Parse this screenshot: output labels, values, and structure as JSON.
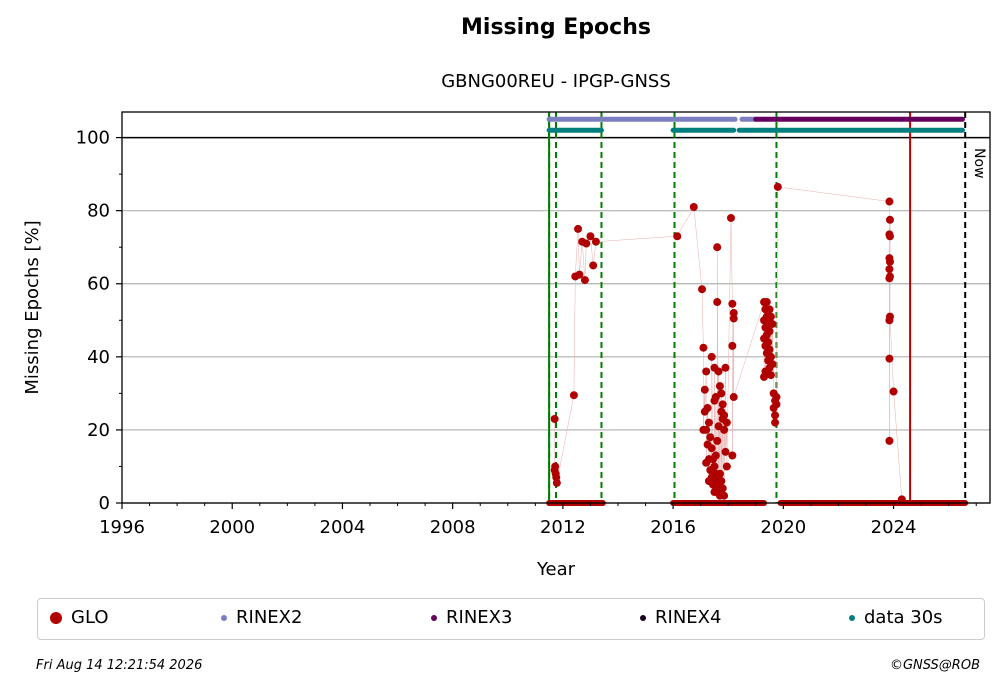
{
  "title": "Missing Epochs",
  "subtitle": "GBNG00REU - IPGP-GNSS",
  "footer": {
    "timestamp": "Fri Aug 14 12:21:54 2026",
    "copyright": "©GNSS@ROB"
  },
  "colors": {
    "glo": "#b00000",
    "rinex2": "#7b7fc0",
    "rinex3": "#66005e",
    "rinex4": "#1a0020",
    "data30s": "#007f7f",
    "green_lines": "#007f00",
    "red_line": "#c00000"
  },
  "legend": [
    {
      "label": "GLO",
      "color_key": "glo",
      "size": 12
    },
    {
      "label": "RINEX2",
      "color_key": "rinex2",
      "size": 6
    },
    {
      "label": "RINEX3",
      "color_key": "rinex3",
      "size": 6
    },
    {
      "label": "RINEX4",
      "color_key": "rinex4",
      "size": 6
    },
    {
      "label": "data 30s",
      "color_key": "data30s",
      "size": 6
    }
  ],
  "chart_data": {
    "type": "scatter",
    "title": "Missing Epochs",
    "subtitle": "GBNG00REU - IPGP-GNSS",
    "xlabel": "Year",
    "ylabel": "Missing Epochs [%]",
    "xlim": [
      1996,
      2027.5
    ],
    "ylim": [
      0,
      107
    ],
    "xticks": [
      1996,
      2000,
      2004,
      2008,
      2012,
      2016,
      2020,
      2024
    ],
    "yticks": [
      0,
      20,
      40,
      60,
      80,
      100
    ],
    "grid": true,
    "now_label": "Now",
    "now_x": 2026.6,
    "vertical_lines_green": [
      2011.5,
      2011.75,
      2013.4,
      2016.05,
      2019.75
    ],
    "vertical_line_red": 2024.6,
    "availability_bars": [
      {
        "name": "RINEX2",
        "y": 105,
        "ranges": [
          [
            2011.5,
            2018.25
          ],
          [
            2018.5,
            2019.0
          ]
        ]
      },
      {
        "name": "RINEX3",
        "y": 105,
        "ranges": [
          [
            2019.0,
            2026.5
          ]
        ]
      },
      {
        "name": "data 30s",
        "y": 102,
        "ranges": [
          [
            2011.5,
            2013.4
          ],
          [
            2016.0,
            2018.2
          ],
          [
            2018.4,
            2026.5
          ]
        ]
      }
    ],
    "zero_ranges": [
      [
        2011.5,
        2013.45
      ],
      [
        2016.0,
        2019.3
      ],
      [
        2019.9,
        2026.6
      ]
    ],
    "series": [
      {
        "name": "GLO",
        "points": [
          [
            2011.7,
            23
          ],
          [
            2011.72,
            10
          ],
          [
            2011.74,
            8
          ],
          [
            2011.76,
            7
          ],
          [
            2011.78,
            5.5
          ],
          [
            2011.7,
            9
          ],
          [
            2012.4,
            29.5
          ],
          [
            2012.45,
            62
          ],
          [
            2012.55,
            75
          ],
          [
            2012.6,
            62.5
          ],
          [
            2012.7,
            71.5
          ],
          [
            2012.8,
            61
          ],
          [
            2012.85,
            71
          ],
          [
            2013.0,
            73
          ],
          [
            2013.1,
            65
          ],
          [
            2013.2,
            71.5
          ],
          [
            2016.15,
            73
          ],
          [
            2016.75,
            81
          ],
          [
            2017.05,
            58.5
          ],
          [
            2017.1,
            42.5
          ],
          [
            2017.15,
            31
          ],
          [
            2017.2,
            36
          ],
          [
            2017.25,
            26
          ],
          [
            2017.3,
            22
          ],
          [
            2017.35,
            18
          ],
          [
            2017.4,
            15
          ],
          [
            2017.45,
            12
          ],
          [
            2017.5,
            10
          ],
          [
            2017.55,
            8
          ],
          [
            2017.6,
            6
          ],
          [
            2017.65,
            4
          ],
          [
            2017.7,
            2
          ],
          [
            2017.15,
            25
          ],
          [
            2017.2,
            20
          ],
          [
            2017.25,
            16
          ],
          [
            2017.3,
            12
          ],
          [
            2017.35,
            9
          ],
          [
            2017.4,
            7
          ],
          [
            2017.45,
            5
          ],
          [
            2017.5,
            3
          ],
          [
            2017.55,
            13
          ],
          [
            2017.6,
            17
          ],
          [
            2017.65,
            21
          ],
          [
            2017.5,
            37
          ],
          [
            2017.55,
            29
          ],
          [
            2017.6,
            55
          ],
          [
            2017.6,
            70
          ],
          [
            2017.7,
            32
          ],
          [
            2017.75,
            30
          ],
          [
            2017.8,
            27
          ],
          [
            2017.85,
            24
          ],
          [
            2017.75,
            25
          ],
          [
            2017.8,
            23
          ],
          [
            2017.85,
            20
          ],
          [
            2017.9,
            37
          ],
          [
            2017.95,
            22
          ],
          [
            2017.9,
            14
          ],
          [
            2017.95,
            10
          ],
          [
            2017.7,
            8
          ],
          [
            2017.75,
            6
          ],
          [
            2017.8,
            4
          ],
          [
            2017.85,
            2
          ],
          [
            2017.1,
            20
          ],
          [
            2017.2,
            11
          ],
          [
            2017.3,
            6
          ],
          [
            2017.4,
            40
          ],
          [
            2017.5,
            28
          ],
          [
            2017.65,
            36
          ],
          [
            2018.1,
            78
          ],
          [
            2018.15,
            54.5
          ],
          [
            2018.2,
            52
          ],
          [
            2018.2,
            50.5
          ],
          [
            2018.15,
            43
          ],
          [
            2018.2,
            29
          ],
          [
            2018.15,
            13
          ],
          [
            2019.3,
            55
          ],
          [
            2019.35,
            53
          ],
          [
            2019.4,
            51
          ],
          [
            2019.45,
            49
          ],
          [
            2019.5,
            47
          ],
          [
            2019.3,
            45
          ],
          [
            2019.35,
            43
          ],
          [
            2019.4,
            41
          ],
          [
            2019.45,
            39
          ],
          [
            2019.5,
            37
          ],
          [
            2019.55,
            35
          ],
          [
            2019.3,
            50
          ],
          [
            2019.35,
            48
          ],
          [
            2019.4,
            46
          ],
          [
            2019.45,
            44
          ],
          [
            2019.5,
            42
          ],
          [
            2019.55,
            40
          ],
          [
            2019.6,
            38
          ],
          [
            2019.35,
            36
          ],
          [
            2019.4,
            55
          ],
          [
            2019.5,
            53
          ],
          [
            2019.55,
            51
          ],
          [
            2019.6,
            49
          ],
          [
            2019.3,
            34.5
          ],
          [
            2019.65,
            30
          ],
          [
            2019.7,
            28
          ],
          [
            2019.65,
            26
          ],
          [
            2019.7,
            24
          ],
          [
            2019.75,
            29
          ],
          [
            2019.75,
            27
          ],
          [
            2019.7,
            22
          ],
          [
            2019.8,
            86.5
          ],
          [
            2023.85,
            82.5
          ],
          [
            2023.87,
            77.5
          ],
          [
            2023.85,
            73.5
          ],
          [
            2023.87,
            73
          ],
          [
            2023.85,
            67
          ],
          [
            2023.87,
            66
          ],
          [
            2023.85,
            64
          ],
          [
            2023.87,
            62
          ],
          [
            2023.85,
            61.5
          ],
          [
            2023.87,
            51
          ],
          [
            2023.85,
            50
          ],
          [
            2023.85,
            39.5
          ],
          [
            2023.85,
            17
          ],
          [
            2024.0,
            30.5
          ],
          [
            2024.3,
            1
          ]
        ]
      }
    ]
  }
}
